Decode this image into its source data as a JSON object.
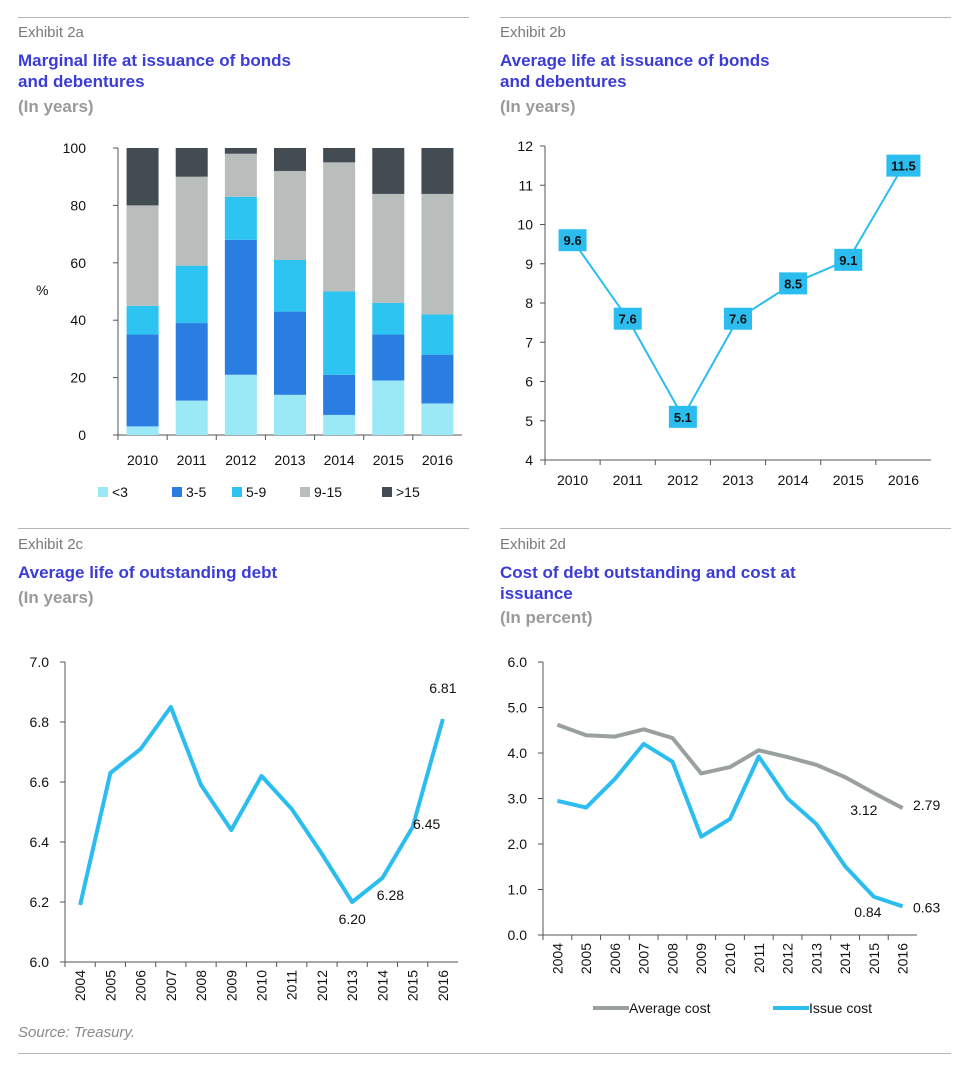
{
  "colors": {
    "under3": "#9be8f7",
    "y3to5": "#2a7de1",
    "y5to9": "#2ec4f2",
    "y9to15": "#b9bdbb",
    "over15": "#434b53",
    "line": "#2bbdf0",
    "avg": "#9aa0a0",
    "title": "#3b3bd6"
  },
  "panels": {
    "a": {
      "exhibit": "Exhibit 2a",
      "title_lines": [
        "Marginal life at issuance of bonds",
        "and debentures"
      ],
      "subtitle": "(In years)"
    },
    "b": {
      "exhibit": "Exhibit 2b",
      "title_lines": [
        "Average life at issuance of bonds",
        "and debentures"
      ],
      "subtitle": "(In years)"
    },
    "c": {
      "exhibit": "Exhibit 2c",
      "title_lines": [
        "Average life of outstanding debt"
      ],
      "subtitle": "(In years)"
    },
    "d": {
      "exhibit": "Exhibit 2d",
      "title_lines": [
        "Cost of debt outstanding and cost at",
        "issuance"
      ],
      "subtitle": "(In percent)"
    }
  },
  "source": "Source: Treasury.",
  "chart_data": [
    {
      "type": "bar",
      "stacked": true,
      "ylabel": "%",
      "ylim": [
        0,
        100
      ],
      "yticks": [
        "0",
        "20",
        "40",
        "60",
        "80",
        "100"
      ],
      "categories": [
        "2010",
        "2011",
        "2012",
        "2013",
        "2014",
        "2015",
        "2016"
      ],
      "series": [
        {
          "name": "<3",
          "values": [
            3,
            12,
            21,
            14,
            7,
            19,
            11
          ]
        },
        {
          "name": "3-5",
          "values": [
            32,
            27,
            47,
            29,
            14,
            16,
            17
          ]
        },
        {
          "name": "5-9",
          "values": [
            10,
            20,
            15,
            18,
            29,
            11,
            14
          ]
        },
        {
          "name": "9-15",
          "values": [
            35,
            31,
            15,
            31,
            45,
            38,
            42
          ]
        },
        {
          "name": ">15",
          "values": [
            20,
            10,
            2,
            8,
            5,
            16,
            16
          ]
        }
      ],
      "legend": "bottom"
    },
    {
      "type": "line",
      "ylim": [
        4,
        12
      ],
      "yticks": [
        "4",
        "5",
        "6",
        "7",
        "8",
        "9",
        "10",
        "11",
        "12"
      ],
      "categories": [
        "2010",
        "2011",
        "2012",
        "2013",
        "2014",
        "2015",
        "2016"
      ],
      "values": [
        9.6,
        7.6,
        5.1,
        7.6,
        8.5,
        9.1,
        11.5
      ],
      "data_labels": [
        "9.6",
        "7.6",
        "5.1",
        "7.6",
        "8.5",
        "9.1",
        "11.5"
      ]
    },
    {
      "type": "line",
      "ylim": [
        6.0,
        7.0
      ],
      "yticks": [
        "6.0",
        "6.2",
        "6.4",
        "6.6",
        "6.8",
        "7.0"
      ],
      "categories": [
        "2004",
        "2005",
        "2006",
        "2007",
        "2008",
        "2009",
        "2010",
        "2011",
        "2012",
        "2013",
        "2014",
        "2015",
        "2016"
      ],
      "values": [
        6.19,
        6.63,
        6.71,
        6.85,
        6.59,
        6.44,
        6.62,
        6.51,
        6.36,
        6.2,
        6.28,
        6.45,
        6.81
      ],
      "annotations": [
        {
          "index": 9,
          "text": "6.20"
        },
        {
          "index": 10,
          "text": "6.28"
        },
        {
          "index": 11,
          "text": "6.45"
        },
        {
          "index": 12,
          "text": "6.81"
        }
      ]
    },
    {
      "type": "line",
      "ylim": [
        0,
        6
      ],
      "yticks": [
        "0.0",
        "1.0",
        "2.0",
        "3.0",
        "4.0",
        "5.0",
        "6.0"
      ],
      "categories": [
        "2004",
        "2005",
        "2006",
        "2007",
        "2008",
        "2009",
        "2010",
        "2011",
        "2012",
        "2013",
        "2014",
        "2015",
        "2016"
      ],
      "series": [
        {
          "name": "Average cost",
          "values": [
            4.62,
            4.39,
            4.36,
            4.52,
            4.33,
            3.55,
            3.69,
            4.06,
            3.91,
            3.74,
            3.47,
            3.12,
            2.79
          ]
        },
        {
          "name": "Issue cost",
          "values": [
            2.95,
            2.8,
            3.43,
            4.2,
            3.81,
            2.16,
            2.55,
            3.92,
            3.0,
            2.44,
            1.51,
            0.84,
            0.63
          ]
        }
      ],
      "annotations": [
        {
          "series": 0,
          "index": 11,
          "text": "3.12"
        },
        {
          "series": 0,
          "index": 12,
          "text": "2.79"
        },
        {
          "series": 1,
          "index": 11,
          "text": "0.84"
        },
        {
          "series": 1,
          "index": 12,
          "text": "0.63"
        }
      ],
      "legend": "bottom"
    }
  ]
}
